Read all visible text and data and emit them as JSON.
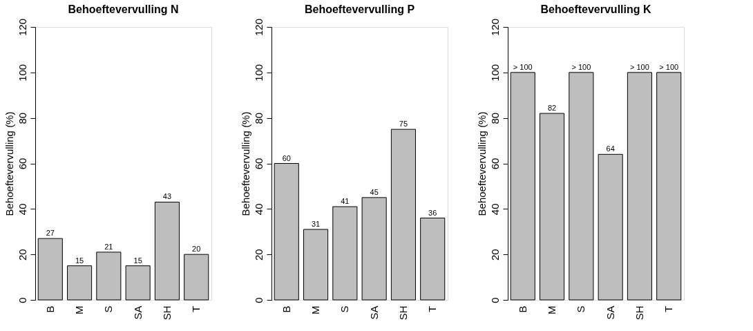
{
  "chart_data": [
    {
      "type": "bar",
      "title": "Behoeftevervulling N",
      "ylabel": "Behoeftevervulling (%)",
      "categories": [
        "B",
        "M",
        "S",
        "SA",
        "SH",
        "T"
      ],
      "values": [
        27,
        15,
        21,
        15,
        43,
        20
      ],
      "color": "#bebebe",
      "ylim": [
        0,
        120
      ],
      "yticks": [
        0,
        20,
        40,
        60,
        80,
        100,
        120
      ],
      "grid": false,
      "data_labels": true
    },
    {
      "type": "bar",
      "title": "Behoeftevervulling P",
      "ylabel": "Behoeftevervulling (%)",
      "categories": [
        "B",
        "M",
        "S",
        "SA",
        "SH",
        "T"
      ],
      "values": [
        60,
        31,
        41,
        45,
        75,
        36
      ],
      "color": "#bebebe",
      "ylim": [
        0,
        120
      ],
      "yticks": [
        0,
        20,
        40,
        60,
        80,
        100,
        120
      ],
      "grid": false,
      "data_labels": true
    },
    {
      "type": "bar",
      "title": "Behoeftevervulling K",
      "ylabel": "Behoeftevervulling (%)",
      "categories": [
        "B",
        "M",
        "S",
        "SA",
        "SH",
        "T"
      ],
      "values": [
        100,
        82,
        100,
        64,
        100,
        100
      ],
      "value_labels": [
        "> 100",
        "82",
        "> 100",
        "64",
        "> 100",
        "> 100"
      ],
      "color": "#bebebe",
      "ylim": [
        0,
        120
      ],
      "yticks": [
        0,
        20,
        40,
        60,
        80,
        100,
        120
      ],
      "grid": false
    }
  ]
}
